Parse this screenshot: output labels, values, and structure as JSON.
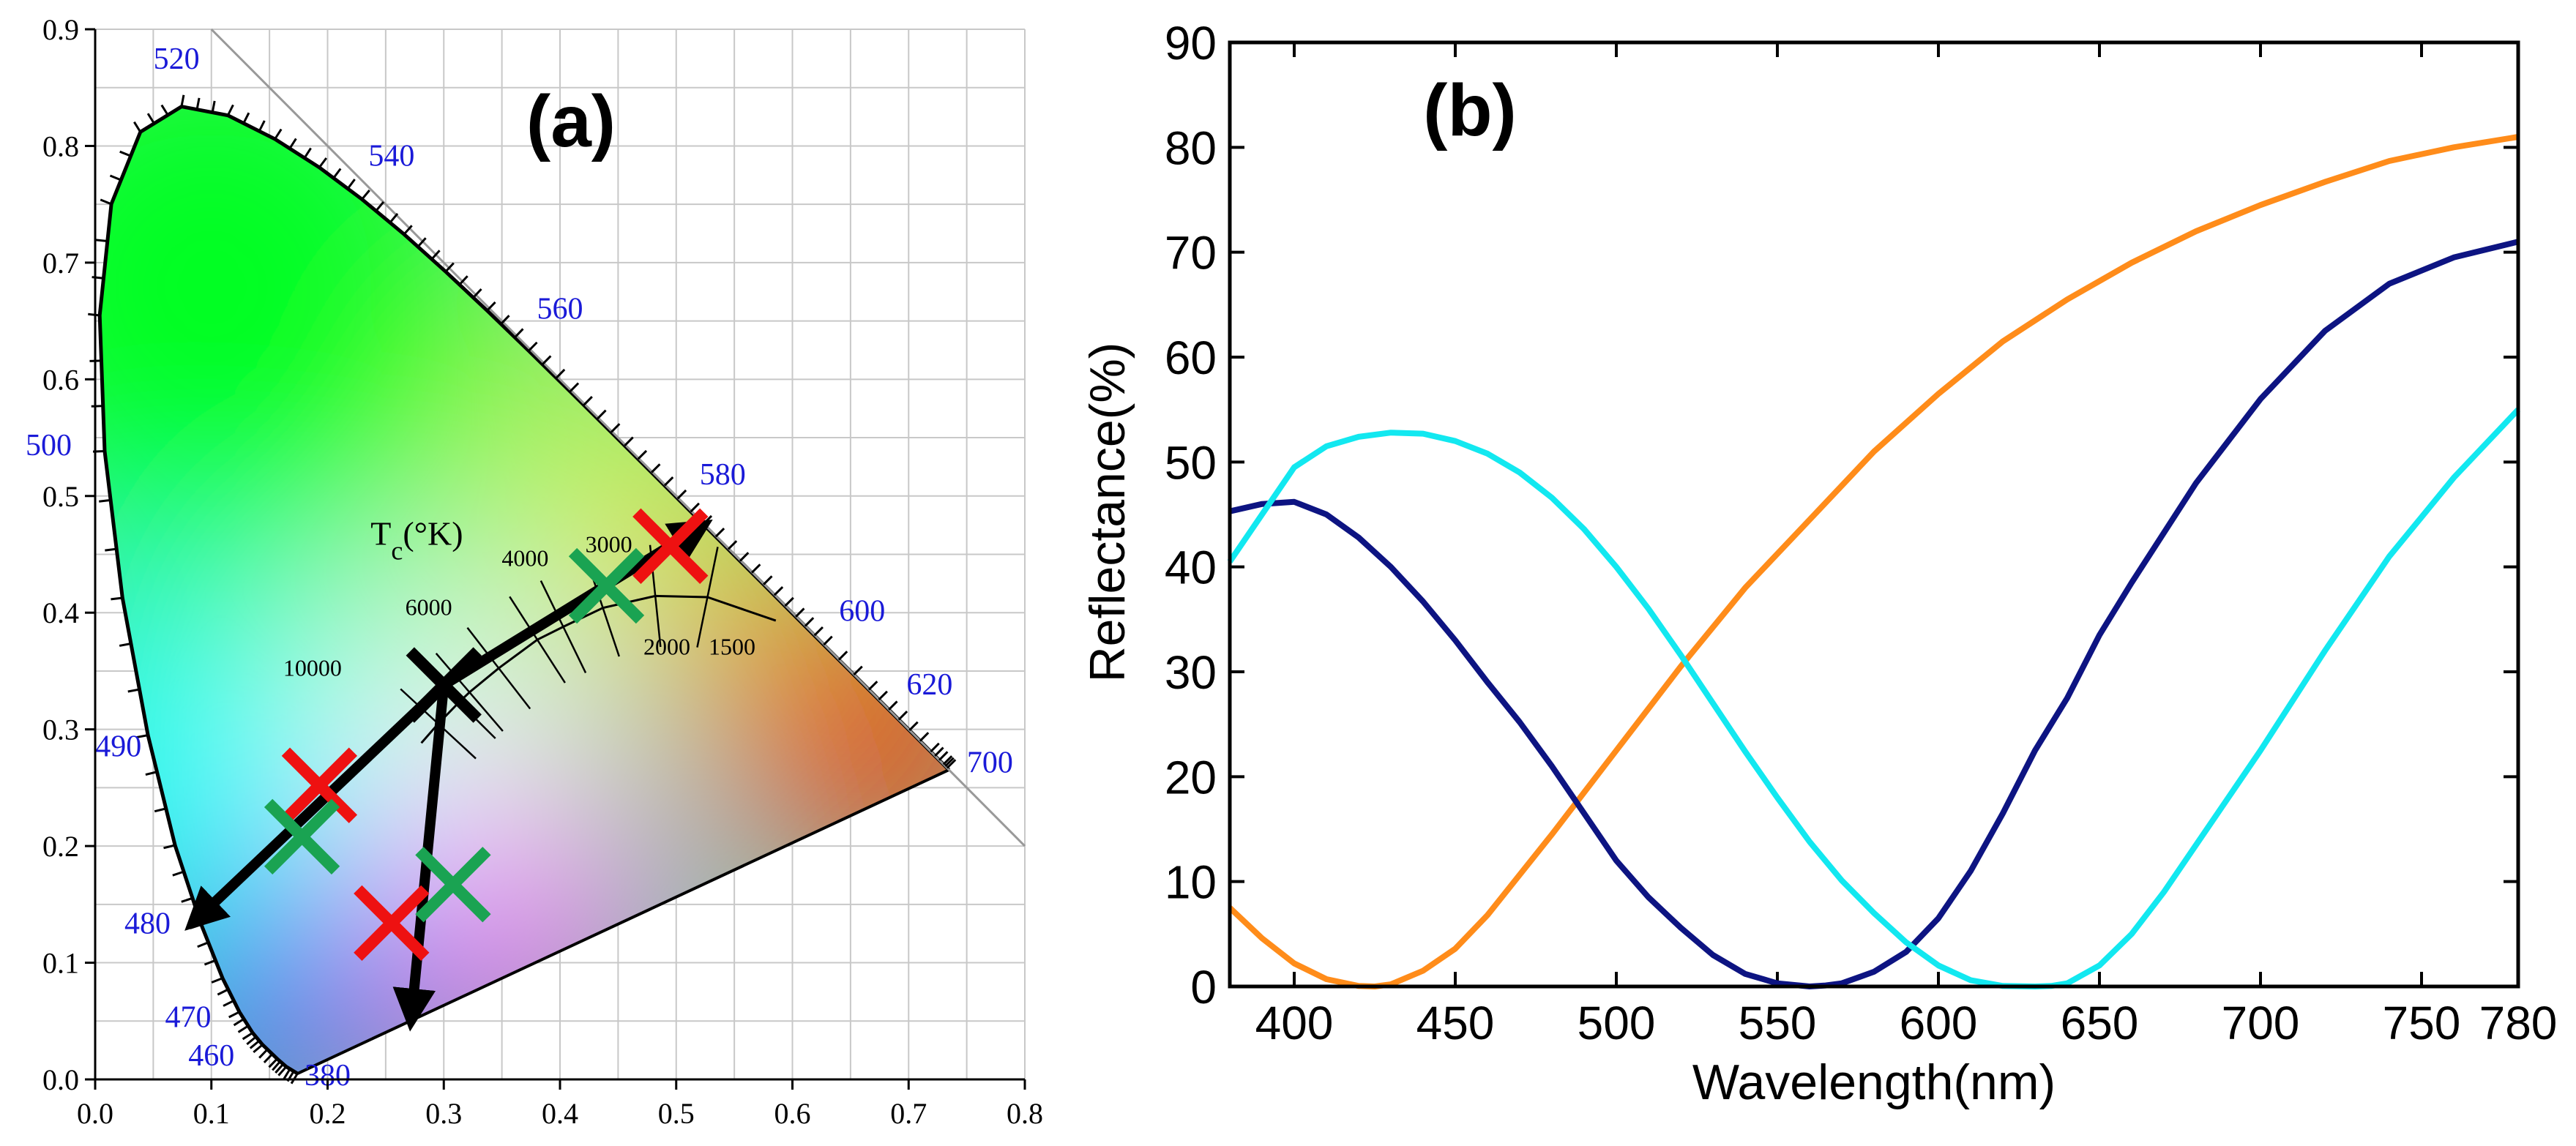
{
  "chart_data": [
    {
      "type": "scatter",
      "panel": "(a)",
      "title": "(a)",
      "description_kind": "CIE 1931 chromaticity diagram",
      "xlim": [
        0.0,
        0.8
      ],
      "ylim": [
        0.0,
        0.9
      ],
      "x_ticks": [
        "0.0",
        "0.1",
        "0.2",
        "0.3",
        "0.4",
        "0.5",
        "0.6",
        "0.7",
        "0.8"
      ],
      "y_ticks": [
        "0.0",
        "0.1",
        "0.2",
        "0.3",
        "0.4",
        "0.5",
        "0.6",
        "0.7",
        "0.8",
        "0.9"
      ],
      "grid": true,
      "locus": [
        {
          "nm": 380,
          "x": 0.1741,
          "y": 0.005
        },
        {
          "nm": 440,
          "x": 0.1644,
          "y": 0.0109
        },
        {
          "nm": 450,
          "x": 0.1566,
          "y": 0.0177
        },
        {
          "nm": 460,
          "x": 0.144,
          "y": 0.0297
        },
        {
          "nm": 465,
          "x": 0.1355,
          "y": 0.0399
        },
        {
          "nm": 470,
          "x": 0.1241,
          "y": 0.0578
        },
        {
          "nm": 475,
          "x": 0.1096,
          "y": 0.0868
        },
        {
          "nm": 480,
          "x": 0.0913,
          "y": 0.1327
        },
        {
          "nm": 485,
          "x": 0.0687,
          "y": 0.2007
        },
        {
          "nm": 490,
          "x": 0.0454,
          "y": 0.295
        },
        {
          "nm": 495,
          "x": 0.0235,
          "y": 0.4127
        },
        {
          "nm": 500,
          "x": 0.0082,
          "y": 0.5384
        },
        {
          "nm": 505,
          "x": 0.0039,
          "y": 0.6548
        },
        {
          "nm": 510,
          "x": 0.0139,
          "y": 0.7502
        },
        {
          "nm": 515,
          "x": 0.0389,
          "y": 0.812
        },
        {
          "nm": 520,
          "x": 0.0743,
          "y": 0.8338
        },
        {
          "nm": 525,
          "x": 0.1142,
          "y": 0.8262
        },
        {
          "nm": 530,
          "x": 0.1547,
          "y": 0.8059
        },
        {
          "nm": 535,
          "x": 0.1929,
          "y": 0.7816
        },
        {
          "nm": 540,
          "x": 0.2296,
          "y": 0.7543
        },
        {
          "nm": 545,
          "x": 0.2658,
          "y": 0.7243
        },
        {
          "nm": 550,
          "x": 0.3016,
          "y": 0.6923
        },
        {
          "nm": 555,
          "x": 0.3373,
          "y": 0.6589
        },
        {
          "nm": 560,
          "x": 0.3731,
          "y": 0.6245
        },
        {
          "nm": 565,
          "x": 0.4087,
          "y": 0.5896
        },
        {
          "nm": 570,
          "x": 0.4441,
          "y": 0.5547
        },
        {
          "nm": 575,
          "x": 0.4788,
          "y": 0.5202
        },
        {
          "nm": 580,
          "x": 0.5125,
          "y": 0.4866
        },
        {
          "nm": 585,
          "x": 0.5448,
          "y": 0.4544
        },
        {
          "nm": 590,
          "x": 0.5752,
          "y": 0.4242
        },
        {
          "nm": 595,
          "x": 0.6029,
          "y": 0.3965
        },
        {
          "nm": 600,
          "x": 0.627,
          "y": 0.3725
        },
        {
          "nm": 610,
          "x": 0.6658,
          "y": 0.334
        },
        {
          "nm": 620,
          "x": 0.6915,
          "y": 0.3083
        },
        {
          "nm": 640,
          "x": 0.719,
          "y": 0.2809
        },
        {
          "nm": 660,
          "x": 0.73,
          "y": 0.27
        },
        {
          "nm": 700,
          "x": 0.7347,
          "y": 0.2653
        }
      ],
      "wavelength_labels": [
        {
          "text": "380",
          "x": 0.2,
          "y": -0.005
        },
        {
          "text": "460",
          "x": 0.1,
          "y": 0.012
        },
        {
          "text": "470",
          "x": 0.08,
          "y": 0.045
        },
        {
          "text": "480",
          "x": 0.045,
          "y": 0.125
        },
        {
          "text": "490",
          "x": 0.02,
          "y": 0.277
        },
        {
          "text": "500",
          "x": -0.04,
          "y": 0.535
        },
        {
          "text": "520",
          "x": 0.07,
          "y": 0.866
        },
        {
          "text": "540",
          "x": 0.255,
          "y": 0.783
        },
        {
          "text": "560",
          "x": 0.4,
          "y": 0.652
        },
        {
          "text": "580",
          "x": 0.54,
          "y": 0.51
        },
        {
          "text": "600",
          "x": 0.66,
          "y": 0.393
        },
        {
          "text": "620",
          "x": 0.718,
          "y": 0.33
        },
        {
          "text": "700",
          "x": 0.77,
          "y": 0.263
        }
      ],
      "planckian_locus": {
        "label_prefix": "T",
        "label_sub": "c",
        "label_suffix": "(°K)",
        "label_pos": {
          "x": 0.237,
          "y": 0.458
        },
        "points": [
          {
            "x": 0.2807,
            "y": 0.2883
          },
          {
            "x": 0.2952,
            "y": 0.3048
          },
          {
            "x": 0.3131,
            "y": 0.3232
          },
          {
            "x": 0.3221,
            "y": 0.3318
          },
          {
            "x": 0.3473,
            "y": 0.3524
          },
          {
            "x": 0.3805,
            "y": 0.3768
          },
          {
            "x": 0.4028,
            "y": 0.3879
          },
          {
            "x": 0.4369,
            "y": 0.4041
          },
          {
            "x": 0.482,
            "y": 0.4143
          },
          {
            "x": 0.5269,
            "y": 0.4133
          },
          {
            "x": 0.5857,
            "y": 0.3932
          }
        ],
        "temperature_labels": [
          {
            "text": "10000",
            "x": 0.187,
            "y": 0.346
          },
          {
            "text": "6000",
            "x": 0.287,
            "y": 0.398
          },
          {
            "text": "4000",
            "x": 0.37,
            "y": 0.44
          },
          {
            "text": "3000",
            "x": 0.442,
            "y": 0.452
          },
          {
            "text": "2000",
            "x": 0.492,
            "y": 0.364
          },
          {
            "text": "1500",
            "x": 0.548,
            "y": 0.364
          }
        ]
      },
      "trajectory_arrows": [
        {
          "from": {
            "x": 0.3,
            "y": 0.338
          },
          "to": {
            "x": 0.085,
            "y": 0.135
          }
        },
        {
          "from": {
            "x": 0.3,
            "y": 0.338
          },
          "to": {
            "x": 0.272,
            "y": 0.052
          }
        },
        {
          "from": {
            "x": 0.3,
            "y": 0.338
          },
          "to": {
            "x": 0.522,
            "y": 0.474
          }
        }
      ],
      "markers": [
        {
          "series": "white reference",
          "color": "#000000",
          "x": 0.3,
          "y": 0.338
        },
        {
          "series": "red",
          "color": "#ee1111",
          "x": 0.193,
          "y": 0.252
        },
        {
          "series": "red",
          "color": "#ee1111",
          "x": 0.255,
          "y": 0.134
        },
        {
          "series": "red",
          "color": "#ee1111",
          "x": 0.495,
          "y": 0.457
        },
        {
          "series": "green",
          "color": "#1aa352",
          "x": 0.178,
          "y": 0.208
        },
        {
          "series": "green",
          "color": "#1aa352",
          "x": 0.308,
          "y": 0.167
        },
        {
          "series": "green",
          "color": "#1aa352",
          "x": 0.44,
          "y": 0.423
        }
      ]
    },
    {
      "type": "line",
      "panel": "(b)",
      "title": "(b)",
      "xlabel": "Wavelength(nm)",
      "ylabel": "Reflectance(%)",
      "xlim": [
        380,
        780
      ],
      "ylim": [
        0,
        90
      ],
      "x_ticks": [
        400,
        450,
        500,
        550,
        600,
        650,
        700,
        750,
        780
      ],
      "y_ticks": [
        0,
        10,
        20,
        30,
        40,
        50,
        60,
        70,
        80,
        90
      ],
      "grid": false,
      "series": [
        {
          "name": "orange",
          "color": "#ff8c1a",
          "x": [
            380,
            390,
            400,
            410,
            420,
            425,
            430,
            440,
            450,
            460,
            480,
            500,
            520,
            540,
            560,
            580,
            600,
            620,
            640,
            660,
            680,
            700,
            720,
            740,
            760,
            780
          ],
          "y": [
            7.5,
            4.6,
            2.2,
            0.7,
            0.05,
            0.0,
            0.2,
            1.5,
            3.6,
            6.8,
            14.5,
            22.5,
            30.5,
            38,
            44.5,
            51,
            56.5,
            61.5,
            65.5,
            69,
            72,
            74.5,
            76.7,
            78.7,
            80,
            81
          ]
        },
        {
          "name": "navy",
          "color": "#0d1482",
          "x": [
            380,
            390,
            400,
            410,
            420,
            430,
            440,
            450,
            460,
            470,
            480,
            490,
            500,
            510,
            520,
            530,
            540,
            550,
            560,
            565,
            570,
            580,
            590,
            600,
            610,
            620,
            630,
            640,
            650,
            660,
            680,
            700,
            720,
            740,
            760,
            780
          ],
          "y": [
            45.3,
            46.0,
            46.2,
            45.0,
            42.8,
            40.0,
            36.7,
            33.0,
            29.0,
            25.2,
            21.0,
            16.5,
            12.0,
            8.5,
            5.6,
            3.0,
            1.2,
            0.3,
            0.0,
            0.1,
            0.3,
            1.4,
            3.3,
            6.5,
            11.0,
            16.5,
            22.5,
            27.5,
            33.5,
            38.5,
            48.0,
            56.0,
            62.5,
            67.0,
            69.5,
            71.0
          ]
        },
        {
          "name": "cyan",
          "color": "#12e8f0",
          "x": [
            380,
            390,
            400,
            410,
            420,
            430,
            440,
            450,
            460,
            470,
            480,
            490,
            500,
            510,
            520,
            530,
            540,
            550,
            560,
            570,
            580,
            590,
            600,
            610,
            620,
            630,
            635,
            640,
            650,
            660,
            670,
            680,
            700,
            720,
            740,
            760,
            780
          ],
          "y": [
            40.5,
            45.0,
            49.5,
            51.5,
            52.4,
            52.8,
            52.7,
            52.0,
            50.8,
            49.0,
            46.6,
            43.6,
            40.0,
            36.0,
            31.6,
            27.0,
            22.4,
            18.0,
            13.8,
            10.1,
            7.0,
            4.2,
            2.0,
            0.6,
            0.05,
            0.0,
            0.05,
            0.3,
            2.0,
            5.0,
            9.0,
            13.5,
            22.5,
            32.0,
            41.0,
            48.5,
            55.0
          ]
        }
      ]
    }
  ]
}
